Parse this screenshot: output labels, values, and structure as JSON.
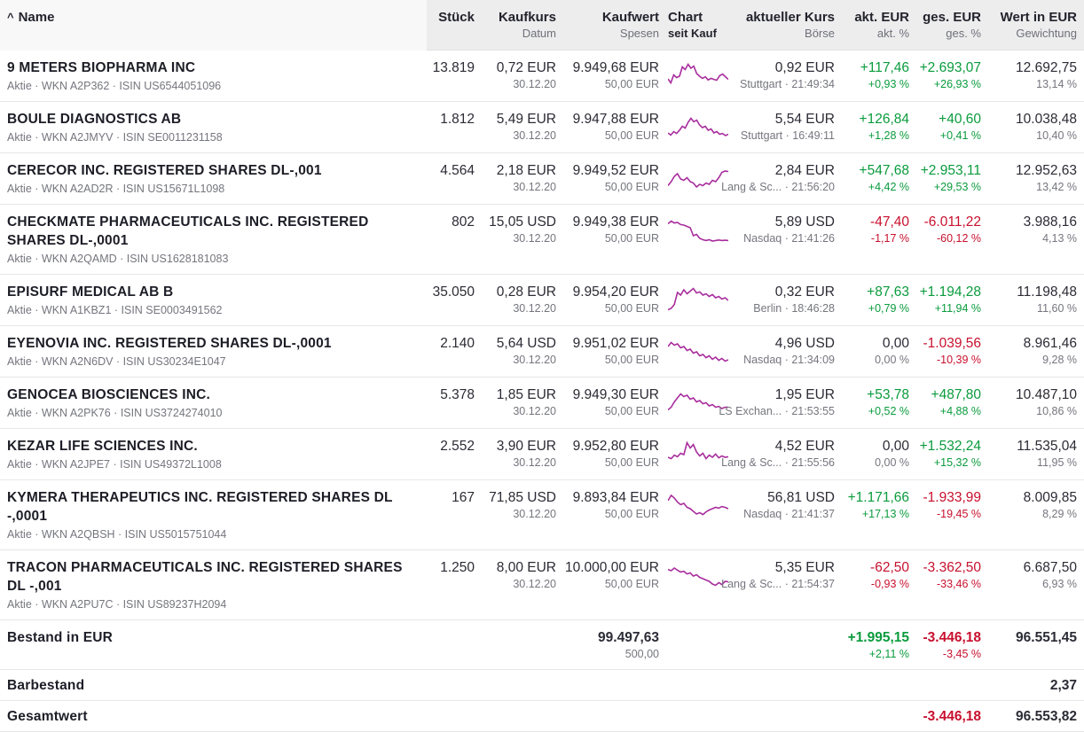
{
  "colors": {
    "positive": "#0a9b3d",
    "negative": "#c8102e",
    "chart_line": "#a82d9d"
  },
  "header": {
    "sort_icon": "^",
    "name": "Name",
    "stueck": "Stück",
    "kaufkurs": "Kaufkurs",
    "kaufkurs_sub": "Datum",
    "kaufwert": "Kaufwert",
    "kaufwert_sub": "Spesen",
    "chart": "Chart",
    "chart_sub": "seit Kauf",
    "kurs": "aktueller Kurs",
    "kurs_sub": "Börse",
    "akt": "akt. EUR",
    "akt_sub": "akt. %",
    "ges": "ges. EUR",
    "ges_sub": "ges. %",
    "wert": "Wert in EUR",
    "wert_sub": "Gewichtung"
  },
  "rows": [
    {
      "name": "9 METERS BIOPHARMA INC",
      "info": "Aktie · WKN A2P362 · ISIN US6544051096",
      "stueck": "13.819",
      "kaufkurs": "0,72 EUR",
      "datum": "30.12.20",
      "kaufwert": "9.949,68 EUR",
      "spesen": "50,00 EUR",
      "kurs": "0,92 EUR",
      "boerse": "Stuttgart · 21:49:34",
      "akt_eur": "+117,46",
      "akt_pct": "+0,93 %",
      "ges_eur": "+2.693,07",
      "ges_pct": "+26,93 %",
      "wert": "12.692,75",
      "gewichtung": "13,14 %",
      "spark": [
        40,
        25,
        55,
        45,
        50,
        85,
        75,
        95,
        80,
        88,
        60,
        50,
        42,
        48,
        36,
        42,
        38,
        35,
        52,
        58,
        48,
        38
      ]
    },
    {
      "name": "BOULE DIAGNOSTICS AB",
      "info": "Aktie · WKN A2JMYV · ISIN SE0011231158",
      "stueck": "1.812",
      "kaufkurs": "5,49 EUR",
      "datum": "30.12.20",
      "kaufwert": "9.947,88 EUR",
      "spesen": "50,00 EUR",
      "kurs": "5,54 EUR",
      "boerse": "Stuttgart · 16:49:11",
      "akt_eur": "+126,84",
      "akt_pct": "+1,28 %",
      "ges_eur": "+40,60",
      "ges_pct": "+0,41 %",
      "wert": "10.038,48",
      "gewichtung": "10,40 %",
      "spark": [
        30,
        22,
        35,
        28,
        40,
        55,
        48,
        70,
        85,
        72,
        78,
        60,
        50,
        55,
        40,
        45,
        30,
        35,
        25,
        28,
        20,
        25
      ]
    },
    {
      "name": "CERECOR INC. REGISTERED SHARES DL-,001",
      "info": "Aktie · WKN A2AD2R · ISIN US15671L1098",
      "stueck": "4.564",
      "kaufkurs": "2,18 EUR",
      "datum": "30.12.20",
      "kaufwert": "9.949,52 EUR",
      "spesen": "50,00 EUR",
      "kurs": "2,84 EUR",
      "boerse": "Lang & Sc... · 21:56:20",
      "akt_eur": "+547,68",
      "akt_pct": "+4,42 %",
      "ges_eur": "+2.953,11",
      "ges_pct": "+29,53 %",
      "wert": "12.952,63",
      "gewichtung": "13,42 %",
      "spark": [
        25,
        40,
        60,
        70,
        50,
        45,
        55,
        40,
        35,
        20,
        30,
        25,
        35,
        30,
        45,
        40,
        55,
        75,
        80,
        78
      ]
    },
    {
      "name": "CHECKMATE PHARMACEUTICALS INC. REGISTERED SHARES DL-,0001",
      "info": "Aktie · WKN A2QAMD · ISIN US1628181083",
      "stueck": "802",
      "kaufkurs": "15,05 USD",
      "datum": "30.12.20",
      "kaufwert": "9.949,38 EUR",
      "spesen": "50,00 EUR",
      "kurs": "5,89 USD",
      "boerse": "Nasdaq · 21:41:26",
      "akt_eur": "-47,40",
      "akt_pct": "-1,17 %",
      "ges_eur": "-6.011,22",
      "ges_pct": "-60,12 %",
      "wert": "3.988,16",
      "gewichtung": "4,13 %",
      "spark": [
        75,
        85,
        78,
        80,
        72,
        70,
        65,
        60,
        30,
        35,
        20,
        15,
        12,
        15,
        10,
        12,
        14,
        12,
        13,
        12
      ]
    },
    {
      "name": "EPISURF MEDICAL AB B",
      "info": "Aktie · WKN A1KBZ1 · ISIN SE0003491562",
      "stueck": "35.050",
      "kaufkurs": "0,28 EUR",
      "datum": "30.12.20",
      "kaufwert": "9.954,20 EUR",
      "spesen": "50,00 EUR",
      "kurs": "0,32 EUR",
      "boerse": "Berlin · 18:46:28",
      "akt_eur": "+87,63",
      "akt_pct": "+0,79 %",
      "ges_eur": "+1.194,28",
      "ges_pct": "+11,94 %",
      "wert": "11.198,48",
      "gewichtung": "11,60 %",
      "spark": [
        15,
        20,
        35,
        80,
        70,
        90,
        75,
        85,
        95,
        78,
        82,
        70,
        75,
        65,
        72,
        60,
        65,
        55,
        60,
        50
      ]
    },
    {
      "name": "EYENOVIA INC. REGISTERED SHARES DL-,0001",
      "info": "Aktie · WKN A2N6DV · ISIN US30234E1047",
      "stueck": "2.140",
      "kaufkurs": "5,64 USD",
      "datum": "30.12.20",
      "kaufwert": "9.951,02 EUR",
      "spesen": "50,00 EUR",
      "kurs": "4,96 USD",
      "boerse": "Nasdaq · 21:34:09",
      "akt_eur": "0,00",
      "akt_pct": "0,00 %",
      "ges_eur": "-1.039,56",
      "ges_pct": "-10,39 %",
      "wert": "8.961,46",
      "gewichtung": "9,28 %",
      "spark": [
        70,
        85,
        75,
        80,
        65,
        70,
        55,
        60,
        45,
        50,
        35,
        40,
        28,
        35,
        22,
        30,
        18,
        25,
        15,
        20
      ]
    },
    {
      "name": "GENOCEA BIOSCIENCES INC.",
      "info": "Aktie · WKN A2PK76 · ISIN US3724274010",
      "stueck": "5.378",
      "kaufkurs": "1,85 EUR",
      "datum": "30.12.20",
      "kaufwert": "9.949,30 EUR",
      "spesen": "50,00 EUR",
      "kurs": "1,95 EUR",
      "boerse": "LS Exchan... · 21:53:55",
      "akt_eur": "+53,78",
      "akt_pct": "+0,52 %",
      "ges_eur": "+487,80",
      "ges_pct": "+4,88 %",
      "wert": "10.487,10",
      "gewichtung": "10,86 %",
      "spark": [
        25,
        35,
        55,
        70,
        85,
        75,
        80,
        65,
        70,
        55,
        60,
        48,
        52,
        40,
        45,
        35,
        38,
        30,
        35,
        35
      ]
    },
    {
      "name": "KEZAR LIFE SCIENCES INC.",
      "info": "Aktie · WKN A2JPE7 · ISIN US49372L1008",
      "stueck": "2.552",
      "kaufkurs": "3,90 EUR",
      "datum": "30.12.20",
      "kaufwert": "9.952,80 EUR",
      "spesen": "50,00 EUR",
      "kurs": "4,52 EUR",
      "boerse": "Lang & Sc... · 21:55:56",
      "akt_eur": "0,00",
      "akt_pct": "0,00 %",
      "ges_eur": "+1.532,24",
      "ges_pct": "+15,32 %",
      "wert": "11.535,04",
      "gewichtung": "11,95 %",
      "spark": [
        40,
        35,
        48,
        42,
        55,
        50,
        95,
        75,
        88,
        60,
        45,
        55,
        35,
        48,
        40,
        52,
        38,
        45,
        40,
        42
      ]
    },
    {
      "name": "KYMERA THERAPEUTICS INC. REGISTERED SHARES DL -,0001",
      "info": "Aktie · WKN A2QBSH · ISIN US5015751044",
      "stueck": "167",
      "kaufkurs": "71,85 USD",
      "datum": "30.12.20",
      "kaufwert": "9.893,84 EUR",
      "spesen": "50,00 EUR",
      "kurs": "56,81 USD",
      "boerse": "Nasdaq · 21:41:37",
      "akt_eur": "+1.171,66",
      "akt_pct": "+17,13 %",
      "ges_eur": "-1.933,99",
      "ges_pct": "-19,45 %",
      "wert": "8.009,85",
      "gewichtung": "8,29 %",
      "spark": [
        70,
        90,
        80,
        65,
        55,
        60,
        45,
        40,
        30,
        20,
        25,
        18,
        28,
        35,
        40,
        45,
        42,
        48,
        45,
        40
      ]
    },
    {
      "name": "TRACON PHARMACEUTICALS INC. REGISTERED SHARES DL -,001",
      "info": "Aktie · WKN A2PU7C · ISIN US89237H2094",
      "stueck": "1.250",
      "kaufkurs": "8,00 EUR",
      "datum": "30.12.20",
      "kaufwert": "10.000,00 EUR",
      "spesen": "50,00 EUR",
      "kurs": "5,35 EUR",
      "boerse": "Lang & Sc... · 21:54:37",
      "akt_eur": "-62,50",
      "akt_pct": "-0,93 %",
      "ges_eur": "-3.362,50",
      "ges_pct": "-33,46 %",
      "wert": "6.687,50",
      "gewichtung": "6,93 %",
      "spark": [
        75,
        70,
        80,
        72,
        65,
        68,
        58,
        62,
        50,
        55,
        45,
        40,
        35,
        30,
        20,
        15,
        25,
        18,
        30,
        28
      ]
    }
  ],
  "footer": {
    "bestand": {
      "label": "Bestand in EUR",
      "kaufwert": "99.497,63",
      "spesen": "500,00",
      "akt_eur": "+1.995,15",
      "akt_pct": "+2,11 %",
      "ges_eur": "-3.446,18",
      "ges_pct": "-3,45 %",
      "wert": "96.551,45"
    },
    "barbestand": {
      "label": "Barbestand",
      "wert": "2,37"
    },
    "gesamtwert": {
      "label": "Gesamtwert",
      "ges_eur": "-3.446,18",
      "wert": "96.553,82"
    }
  }
}
